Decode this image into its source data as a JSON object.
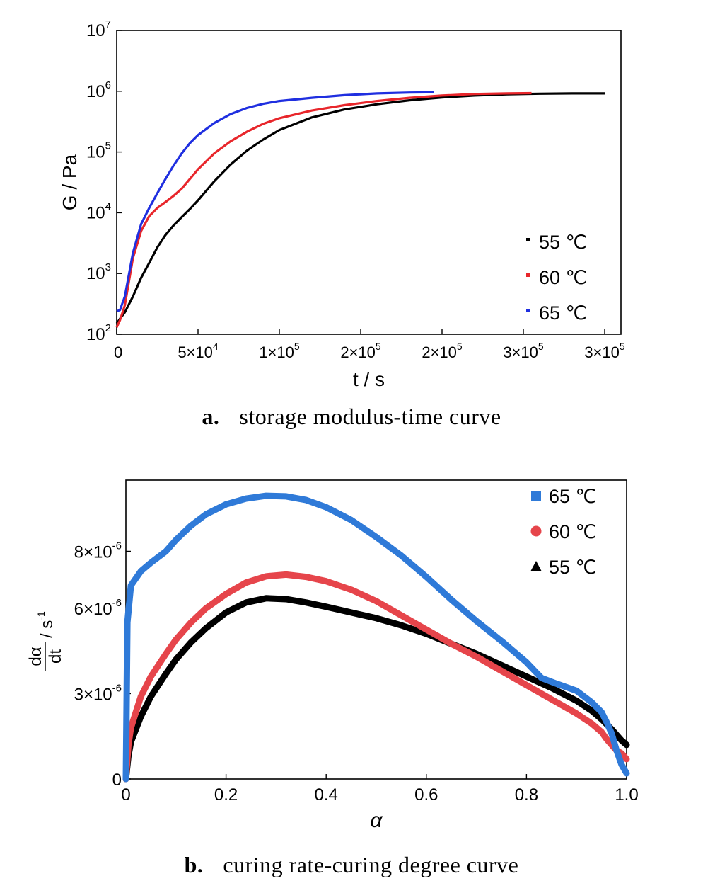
{
  "captions": [
    {
      "letter": "a.",
      "text": "storage modulus-time curve"
    },
    {
      "letter": "b.",
      "text": "curing rate-curing degree curve"
    }
  ],
  "chart_data": [
    {
      "type": "line",
      "xlabel": "t / s",
      "ylabel": "G / Pa",
      "y_scale": "log",
      "xlim": [
        0,
        310000
      ],
      "ylim": [
        100,
        10000000
      ],
      "x_tick_values": [
        0,
        50000,
        100000,
        150000,
        200000,
        250000,
        300000
      ],
      "x_tick_labels": [
        {
          "mant": "0",
          "exp": ""
        },
        {
          "mant": "5×10",
          "exp": "4"
        },
        {
          "mant": "1×10",
          "exp": "5"
        },
        {
          "mant": "2×10",
          "exp": "5"
        },
        {
          "mant": "2×10",
          "exp": "5"
        },
        {
          "mant": "3×10",
          "exp": "5"
        },
        {
          "mant": "3×10",
          "exp": "5"
        }
      ],
      "y_tick_values": [
        100,
        1000,
        10000,
        100000,
        1000000,
        10000000
      ],
      "y_tick_labels": [
        {
          "mant": "10",
          "exp": "2"
        },
        {
          "mant": "10",
          "exp": "3"
        },
        {
          "mant": "10",
          "exp": "4"
        },
        {
          "mant": "10",
          "exp": "5"
        },
        {
          "mant": "10",
          "exp": "6"
        },
        {
          "mant": "10",
          "exp": "7"
        }
      ],
      "legend_position": "bottom-right",
      "series": [
        {
          "name": "55 ℃",
          "color": "#000000",
          "x": [
            0,
            2000,
            5000,
            10000,
            15000,
            20000,
            25000,
            30000,
            35000,
            40000,
            45000,
            50000,
            60000,
            70000,
            80000,
            90000,
            100000,
            120000,
            140000,
            160000,
            180000,
            200000,
            220000,
            240000,
            260000,
            280000,
            300000
          ],
          "y": [
            150,
            180,
            230,
            420,
            850,
            1500,
            2700,
            4300,
            6200,
            8500,
            11500,
            16000,
            33000,
            62000,
            105000,
            160000,
            230000,
            370000,
            500000,
            610000,
            710000,
            790000,
            850000,
            890000,
            910000,
            920000,
            920000
          ]
        },
        {
          "name": "60 ℃",
          "color": "#e8262b",
          "x": [
            0,
            2000,
            5000,
            10000,
            15000,
            20000,
            25000,
            30000,
            35000,
            40000,
            45000,
            50000,
            60000,
            70000,
            80000,
            90000,
            100000,
            120000,
            140000,
            160000,
            180000,
            200000,
            220000,
            240000,
            255000
          ],
          "y": [
            130,
            170,
            300,
            1800,
            5000,
            8800,
            12000,
            15000,
            19000,
            25000,
            36000,
            52000,
            95000,
            150000,
            215000,
            290000,
            360000,
            480000,
            590000,
            690000,
            780000,
            850000,
            900000,
            920000,
            930000
          ]
        },
        {
          "name": "65 ℃",
          "color": "#1f2fe0",
          "x": [
            0,
            2000,
            5000,
            10000,
            15000,
            20000,
            25000,
            30000,
            35000,
            40000,
            45000,
            50000,
            60000,
            70000,
            80000,
            90000,
            100000,
            120000,
            140000,
            160000,
            180000,
            195000
          ],
          "y": [
            240,
            250,
            420,
            2200,
            6500,
            12000,
            21000,
            36000,
            60000,
            95000,
            140000,
            190000,
            300000,
            420000,
            530000,
            620000,
            690000,
            780000,
            860000,
            920000,
            950000,
            960000
          ]
        }
      ]
    },
    {
      "type": "scatter",
      "xlabel": "α",
      "xlim": [
        0,
        1.0
      ],
      "ylim": [
        0,
        1.05e-05
      ],
      "x_tick_values": [
        0,
        0.2,
        0.4,
        0.6,
        0.8,
        1.0
      ],
      "x_tick_labels": [
        "0",
        "0.2",
        "0.4",
        "0.6",
        "0.8",
        "1.0"
      ],
      "y_tick_values": [
        0,
        3e-06,
        6e-06,
        8e-06
      ],
      "y_tick_labels": [
        {
          "mant": "0",
          "exp": ""
        },
        {
          "mant": "3×10",
          "exp": "-6"
        },
        {
          "mant": "6×10",
          "exp": "-6"
        },
        {
          "mant": "8×10",
          "exp": "-6"
        }
      ],
      "ylabel_num": "dα",
      "ylabel_den": "dt",
      "ylabel_unit": "s",
      "ylabel_unit_exp": "-1",
      "legend_position": "top-right",
      "series": [
        {
          "name": "65 ℃",
          "color": "#2f7ad8",
          "marker": "square",
          "x": [
            0,
            0.003,
            0.01,
            0.03,
            0.05,
            0.08,
            0.1,
            0.13,
            0.16,
            0.2,
            0.24,
            0.28,
            0.32,
            0.36,
            0.4,
            0.45,
            0.5,
            0.55,
            0.6,
            0.65,
            0.7,
            0.75,
            0.8,
            0.83,
            0.86,
            0.9,
            0.93,
            0.95,
            0.96,
            0.97,
            0.98,
            0.99,
            1.0
          ],
          "y": [
            0,
            5.5e-06,
            6.8e-06,
            7.3e-06,
            7.6e-06,
            8e-06,
            8.4e-06,
            8.9e-06,
            9.3e-06,
            9.65e-06,
            9.85e-06,
            9.95e-06,
            9.93e-06,
            9.8e-06,
            9.55e-06,
            9.1e-06,
            8.5e-06,
            7.85e-06,
            7.1e-06,
            6.3e-06,
            5.55e-06,
            4.85e-06,
            4.1e-06,
            3.55e-06,
            3.35e-06,
            3.1e-06,
            2.7e-06,
            2.35e-06,
            2e-06,
            1.6e-06,
            1e-06,
            5e-07,
            2e-07
          ]
        },
        {
          "name": "60 ℃",
          "color": "#e6454b",
          "marker": "circle",
          "x": [
            0,
            0.005,
            0.01,
            0.03,
            0.05,
            0.08,
            0.1,
            0.13,
            0.16,
            0.2,
            0.24,
            0.28,
            0.32,
            0.36,
            0.4,
            0.45,
            0.5,
            0.55,
            0.6,
            0.65,
            0.7,
            0.75,
            0.8,
            0.85,
            0.9,
            0.93,
            0.95,
            0.96,
            0.97,
            0.98,
            0.99,
            1.0
          ],
          "y": [
            0,
            1.2e-06,
            1.8e-06,
            2.9e-06,
            3.6e-06,
            4.4e-06,
            4.9e-06,
            5.5e-06,
            6e-06,
            6.5e-06,
            6.9e-06,
            7.12e-06,
            7.18e-06,
            7.1e-06,
            6.95e-06,
            6.65e-06,
            6.25e-06,
            5.75e-06,
            5.25e-06,
            4.75e-06,
            4.3e-06,
            3.8e-06,
            3.3e-06,
            2.8e-06,
            2.3e-06,
            1.95e-06,
            1.65e-06,
            1.4e-06,
            1.2e-06,
            1e-06,
            9e-07,
            7e-07
          ]
        },
        {
          "name": "55 ℃",
          "color": "#000000",
          "marker": "triangle",
          "x": [
            0,
            0.005,
            0.01,
            0.03,
            0.05,
            0.08,
            0.1,
            0.13,
            0.16,
            0.2,
            0.24,
            0.28,
            0.32,
            0.36,
            0.4,
            0.45,
            0.5,
            0.55,
            0.6,
            0.65,
            0.7,
            0.75,
            0.8,
            0.85,
            0.9,
            0.93,
            0.95,
            0.97,
            0.98,
            0.99,
            1.0
          ],
          "y": [
            0,
            8e-07,
            1.3e-06,
            2.2e-06,
            2.9e-06,
            3.7e-06,
            4.2e-06,
            4.8e-06,
            5.3e-06,
            5.85e-06,
            6.2e-06,
            6.35e-06,
            6.32e-06,
            6.2e-06,
            6.05e-06,
            5.85e-06,
            5.65e-06,
            5.4e-06,
            5.1e-06,
            4.75e-06,
            4.4e-06,
            4e-06,
            3.6e-06,
            3.2e-06,
            2.75e-06,
            2.4e-06,
            2.1e-06,
            1.75e-06,
            1.55e-06,
            1.35e-06,
            1.2e-06
          ]
        }
      ]
    }
  ]
}
